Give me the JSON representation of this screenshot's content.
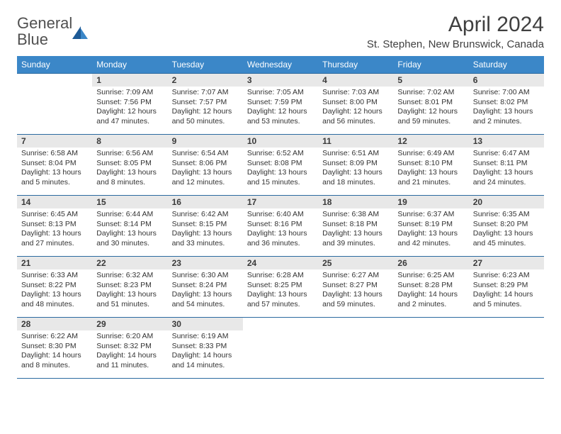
{
  "logo": {
    "text_gray": "General",
    "text_blue": "Blue"
  },
  "header": {
    "month_title": "April 2024",
    "location": "St. Stephen, New Brunswick, Canada"
  },
  "day_headers": [
    "Sunday",
    "Monday",
    "Tuesday",
    "Wednesday",
    "Thursday",
    "Friday",
    "Saturday"
  ],
  "colors": {
    "header_bg": "#3b87c8",
    "header_text": "#ffffff",
    "border": "#2b6aa0",
    "daynum_bg": "#e8e8e8",
    "logo_blue": "#2f7ac0",
    "text": "#333333"
  },
  "weeks": [
    [
      null,
      {
        "n": "1",
        "sr": "Sunrise: 7:09 AM",
        "ss": "Sunset: 7:56 PM",
        "dl1": "Daylight: 12 hours",
        "dl2": "and 47 minutes."
      },
      {
        "n": "2",
        "sr": "Sunrise: 7:07 AM",
        "ss": "Sunset: 7:57 PM",
        "dl1": "Daylight: 12 hours",
        "dl2": "and 50 minutes."
      },
      {
        "n": "3",
        "sr": "Sunrise: 7:05 AM",
        "ss": "Sunset: 7:59 PM",
        "dl1": "Daylight: 12 hours",
        "dl2": "and 53 minutes."
      },
      {
        "n": "4",
        "sr": "Sunrise: 7:03 AM",
        "ss": "Sunset: 8:00 PM",
        "dl1": "Daylight: 12 hours",
        "dl2": "and 56 minutes."
      },
      {
        "n": "5",
        "sr": "Sunrise: 7:02 AM",
        "ss": "Sunset: 8:01 PM",
        "dl1": "Daylight: 12 hours",
        "dl2": "and 59 minutes."
      },
      {
        "n": "6",
        "sr": "Sunrise: 7:00 AM",
        "ss": "Sunset: 8:02 PM",
        "dl1": "Daylight: 13 hours",
        "dl2": "and 2 minutes."
      }
    ],
    [
      {
        "n": "7",
        "sr": "Sunrise: 6:58 AM",
        "ss": "Sunset: 8:04 PM",
        "dl1": "Daylight: 13 hours",
        "dl2": "and 5 minutes."
      },
      {
        "n": "8",
        "sr": "Sunrise: 6:56 AM",
        "ss": "Sunset: 8:05 PM",
        "dl1": "Daylight: 13 hours",
        "dl2": "and 8 minutes."
      },
      {
        "n": "9",
        "sr": "Sunrise: 6:54 AM",
        "ss": "Sunset: 8:06 PM",
        "dl1": "Daylight: 13 hours",
        "dl2": "and 12 minutes."
      },
      {
        "n": "10",
        "sr": "Sunrise: 6:52 AM",
        "ss": "Sunset: 8:08 PM",
        "dl1": "Daylight: 13 hours",
        "dl2": "and 15 minutes."
      },
      {
        "n": "11",
        "sr": "Sunrise: 6:51 AM",
        "ss": "Sunset: 8:09 PM",
        "dl1": "Daylight: 13 hours",
        "dl2": "and 18 minutes."
      },
      {
        "n": "12",
        "sr": "Sunrise: 6:49 AM",
        "ss": "Sunset: 8:10 PM",
        "dl1": "Daylight: 13 hours",
        "dl2": "and 21 minutes."
      },
      {
        "n": "13",
        "sr": "Sunrise: 6:47 AM",
        "ss": "Sunset: 8:11 PM",
        "dl1": "Daylight: 13 hours",
        "dl2": "and 24 minutes."
      }
    ],
    [
      {
        "n": "14",
        "sr": "Sunrise: 6:45 AM",
        "ss": "Sunset: 8:13 PM",
        "dl1": "Daylight: 13 hours",
        "dl2": "and 27 minutes."
      },
      {
        "n": "15",
        "sr": "Sunrise: 6:44 AM",
        "ss": "Sunset: 8:14 PM",
        "dl1": "Daylight: 13 hours",
        "dl2": "and 30 minutes."
      },
      {
        "n": "16",
        "sr": "Sunrise: 6:42 AM",
        "ss": "Sunset: 8:15 PM",
        "dl1": "Daylight: 13 hours",
        "dl2": "and 33 minutes."
      },
      {
        "n": "17",
        "sr": "Sunrise: 6:40 AM",
        "ss": "Sunset: 8:16 PM",
        "dl1": "Daylight: 13 hours",
        "dl2": "and 36 minutes."
      },
      {
        "n": "18",
        "sr": "Sunrise: 6:38 AM",
        "ss": "Sunset: 8:18 PM",
        "dl1": "Daylight: 13 hours",
        "dl2": "and 39 minutes."
      },
      {
        "n": "19",
        "sr": "Sunrise: 6:37 AM",
        "ss": "Sunset: 8:19 PM",
        "dl1": "Daylight: 13 hours",
        "dl2": "and 42 minutes."
      },
      {
        "n": "20",
        "sr": "Sunrise: 6:35 AM",
        "ss": "Sunset: 8:20 PM",
        "dl1": "Daylight: 13 hours",
        "dl2": "and 45 minutes."
      }
    ],
    [
      {
        "n": "21",
        "sr": "Sunrise: 6:33 AM",
        "ss": "Sunset: 8:22 PM",
        "dl1": "Daylight: 13 hours",
        "dl2": "and 48 minutes."
      },
      {
        "n": "22",
        "sr": "Sunrise: 6:32 AM",
        "ss": "Sunset: 8:23 PM",
        "dl1": "Daylight: 13 hours",
        "dl2": "and 51 minutes."
      },
      {
        "n": "23",
        "sr": "Sunrise: 6:30 AM",
        "ss": "Sunset: 8:24 PM",
        "dl1": "Daylight: 13 hours",
        "dl2": "and 54 minutes."
      },
      {
        "n": "24",
        "sr": "Sunrise: 6:28 AM",
        "ss": "Sunset: 8:25 PM",
        "dl1": "Daylight: 13 hours",
        "dl2": "and 57 minutes."
      },
      {
        "n": "25",
        "sr": "Sunrise: 6:27 AM",
        "ss": "Sunset: 8:27 PM",
        "dl1": "Daylight: 13 hours",
        "dl2": "and 59 minutes."
      },
      {
        "n": "26",
        "sr": "Sunrise: 6:25 AM",
        "ss": "Sunset: 8:28 PM",
        "dl1": "Daylight: 14 hours",
        "dl2": "and 2 minutes."
      },
      {
        "n": "27",
        "sr": "Sunrise: 6:23 AM",
        "ss": "Sunset: 8:29 PM",
        "dl1": "Daylight: 14 hours",
        "dl2": "and 5 minutes."
      }
    ],
    [
      {
        "n": "28",
        "sr": "Sunrise: 6:22 AM",
        "ss": "Sunset: 8:30 PM",
        "dl1": "Daylight: 14 hours",
        "dl2": "and 8 minutes."
      },
      {
        "n": "29",
        "sr": "Sunrise: 6:20 AM",
        "ss": "Sunset: 8:32 PM",
        "dl1": "Daylight: 14 hours",
        "dl2": "and 11 minutes."
      },
      {
        "n": "30",
        "sr": "Sunrise: 6:19 AM",
        "ss": "Sunset: 8:33 PM",
        "dl1": "Daylight: 14 hours",
        "dl2": "and 14 minutes."
      },
      null,
      null,
      null,
      null
    ]
  ]
}
